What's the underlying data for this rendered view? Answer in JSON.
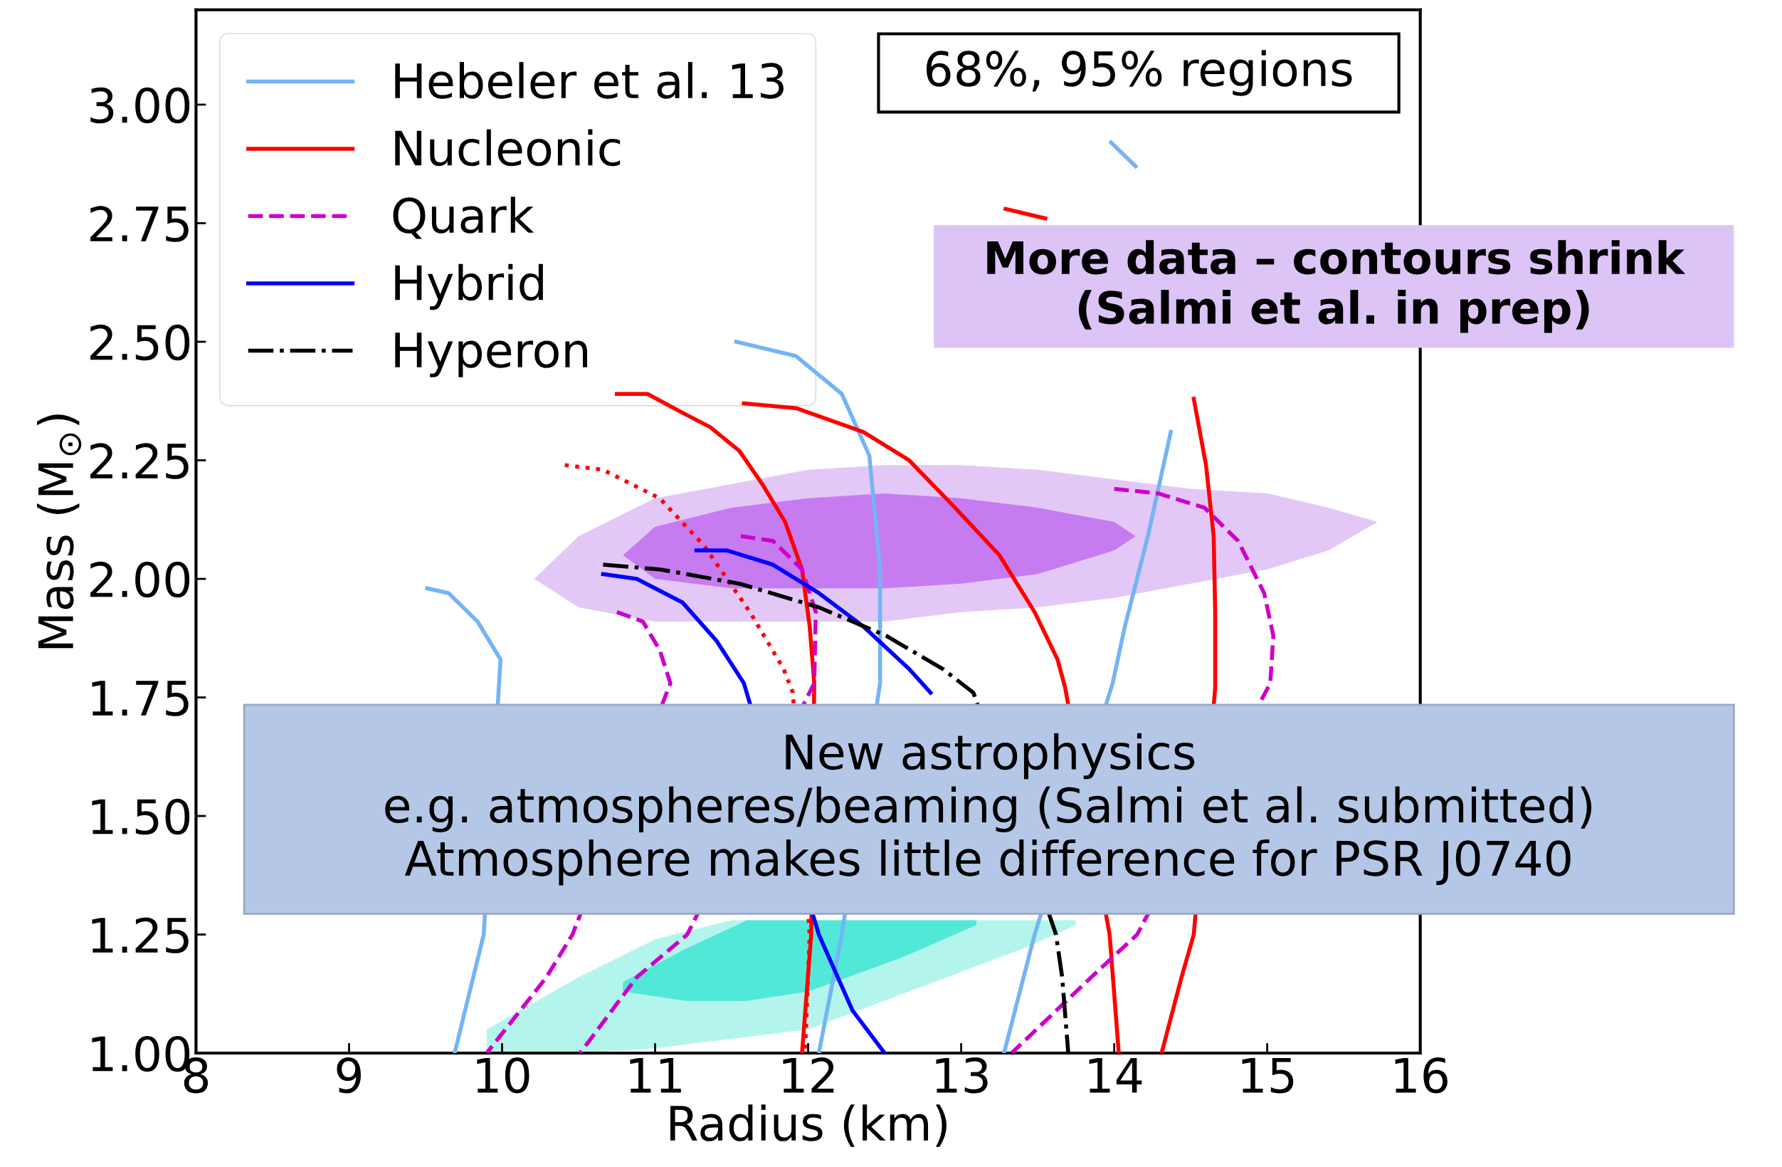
{
  "chart_data": {
    "type": "line",
    "xlabel": "Radius (km)",
    "ylabel": "Mass (M$_{⊙}$)",
    "xlim": [
      8,
      16
    ],
    "ylim": [
      1.0,
      3.2
    ],
    "xticks": [
      8,
      9,
      10,
      11,
      12,
      13,
      14,
      15,
      16
    ],
    "yticks": [
      {
        "value": 1.0,
        "label": "1.00"
      },
      {
        "value": 1.25,
        "label": "1.25"
      },
      {
        "value": 1.5,
        "label": "1.50"
      },
      {
        "value": 1.75,
        "label": "1.75"
      },
      {
        "value": 2.0,
        "label": "2.00"
      },
      {
        "value": 2.25,
        "label": "2.25"
      },
      {
        "value": 2.5,
        "label": "2.50"
      },
      {
        "value": 2.75,
        "label": "2.75"
      },
      {
        "value": 3.0,
        "label": "3.00"
      }
    ],
    "grid": false,
    "legend": "top left",
    "series": [
      {
        "type": "area",
        "color": "#e3c8f7",
        "x": [
          10.21,
          10.5,
          11,
          11.5,
          12,
          12.5,
          13,
          13.5,
          14,
          14.5,
          15,
          15.4,
          15.72
        ],
        "values": [
          null,
          null,
          null,
          null,
          null,
          null,
          null,
          null,
          null,
          null,
          null,
          null,
          null
        ],
        "lower": [
          2.0,
          1.94,
          1.91,
          1.91,
          1.91,
          1.91,
          1.93,
          1.94,
          1.96,
          1.99,
          2.02,
          2.06,
          2.12
        ],
        "upper": [
          2.0,
          2.09,
          2.17,
          2.2,
          2.23,
          2.24,
          2.24,
          2.23,
          2.21,
          2.19,
          2.18,
          2.15,
          2.12
        ]
      },
      {
        "type": "area",
        "color": "#c77bf0",
        "x": [
          10.79,
          11,
          11.5,
          12,
          12.5,
          13,
          13.5,
          14,
          14.14
        ],
        "values": [
          null,
          null,
          null,
          null,
          null,
          null,
          null,
          null,
          null
        ],
        "lower": [
          2.05,
          2.0,
          1.98,
          1.98,
          1.98,
          1.99,
          2.01,
          2.06,
          2.09
        ],
        "upper": [
          2.05,
          2.11,
          2.15,
          2.17,
          2.18,
          2.17,
          2.15,
          2.12,
          2.09
        ]
      },
      {
        "type": "area",
        "color": "#b3f5ec",
        "x": [
          9.9,
          10.5,
          11,
          11.5,
          12,
          12.66,
          13.4,
          13.75
        ],
        "values": [
          null,
          null,
          null,
          null,
          null,
          null,
          null,
          null
        ],
        "lower": [
          1.0,
          1.0,
          1.01,
          1.03,
          1.05,
          1.13,
          1.22,
          1.27
        ],
        "upper": [
          1.05,
          1.16,
          1.24,
          1.28,
          1.28,
          1.28,
          1.28,
          1.28
        ]
      },
      {
        "type": "area",
        "color": "#52e8d8",
        "x": [
          10.79,
          11.2,
          11.6,
          12,
          12.6,
          13.1
        ],
        "values": [
          null,
          null,
          null,
          null,
          null,
          null
        ],
        "lower": [
          1.13,
          1.11,
          1.11,
          1.13,
          1.2,
          1.27
        ],
        "upper": [
          1.15,
          1.22,
          1.28,
          1.28,
          1.28,
          1.28
        ]
      },
      {
        "name": "Hebeler et al. 13",
        "color": "#74b4f5",
        "line_style": "solid",
        "x": [
          9.51,
          9.65,
          9.84,
          9.99,
          9.88,
          9.69
        ],
        "values": [
          1.98,
          1.97,
          1.91,
          1.83,
          1.25,
          1.0
        ]
      },
      {
        "color": "#74b4f5",
        "line_style": "solid",
        "x": [
          11.53,
          11.92,
          12.22,
          12.4,
          12.47,
          12.47,
          12.22,
          12.07
        ],
        "values": [
          2.5,
          2.47,
          2.39,
          2.26,
          2.02,
          1.78,
          1.25,
          1.0
        ]
      },
      {
        "color": "#74b4f5",
        "line_style": "solid",
        "x": [
          13.98,
          14.14,
          null,
          null,
          14.37,
          14.22,
          14.07,
          13.99,
          13.48,
          13.28
        ],
        "values": [
          2.92,
          2.87,
          null,
          null,
          2.31,
          2.09,
          1.9,
          1.78,
          1.25,
          1.0
        ]
      },
      {
        "name": "Nucleonic",
        "color": "#ff0000",
        "line_style": "solid",
        "x": [
          10.75,
          10.95,
          11.18,
          11.36,
          11.55,
          11.7,
          11.85,
          11.96,
          12.01,
          12.04,
          12.02,
          11.96
        ],
        "values": [
          2.39,
          2.39,
          2.35,
          2.32,
          2.27,
          2.2,
          2.12,
          2.02,
          1.9,
          1.78,
          1.25,
          1.0
        ]
      },
      {
        "color": "#ff0000",
        "line_style": "solid",
        "x": [
          11.58,
          11.92,
          12.36,
          12.66,
          12.96,
          13.25,
          13.48,
          13.63,
          13.68,
          13.97,
          14.03
        ],
        "values": [
          2.37,
          2.36,
          2.31,
          2.25,
          2.15,
          2.05,
          1.93,
          1.83,
          1.77,
          1.25,
          1.0
        ]
      },
      {
        "color": "#ff0000",
        "line_style": "solid",
        "x": [
          13.29,
          13.55,
          null,
          null,
          null,
          14.52,
          14.6,
          14.65,
          14.66,
          14.66,
          14.52,
          14.44,
          14.31
        ],
        "values": [
          2.78,
          2.76,
          null,
          null,
          null,
          2.38,
          2.24,
          2.09,
          1.93,
          1.77,
          1.25,
          1.16,
          1.0
        ]
      },
      {
        "color": "#ff0000",
        "line_style": "dotted",
        "x": [
          10.41,
          10.66,
          11.03,
          11.32,
          11.62,
          11.84,
          11.9,
          12.01,
          11.98
        ],
        "values": [
          2.24,
          2.23,
          2.17,
          2.07,
          1.93,
          1.81,
          1.76,
          1.25,
          1.0
        ]
      },
      {
        "name": "Quark",
        "color": "#cc00cc",
        "line_style": "dashed",
        "x": [
          10.75,
          10.92,
          11.03,
          11.1,
          10.46,
          10.29,
          9.9
        ],
        "values": [
          1.93,
          1.91,
          1.85,
          1.78,
          1.25,
          1.16,
          1.0
        ]
      },
      {
        "color": "#cc00cc",
        "line_style": "dashed",
        "x": [
          11.56,
          11.77,
          11.96,
          12.05,
          12.04,
          11.21,
          10.88,
          10.51
        ],
        "values": [
          2.09,
          2.08,
          2.02,
          1.93,
          1.78,
          1.25,
          1.16,
          1.0
        ]
      },
      {
        "color": "#cc00cc",
        "line_style": "dashed",
        "x": [
          14.0,
          14.29,
          14.59,
          14.81,
          14.98,
          15.04,
          15.02,
          14.15,
          13.85,
          13.33
        ],
        "values": [
          2.19,
          2.18,
          2.15,
          2.08,
          1.97,
          1.88,
          1.78,
          1.25,
          1.16,
          1.0
        ]
      },
      {
        "name": "Hybrid",
        "color": "#0000ff",
        "line_style": "solid",
        "x": [
          10.66,
          10.88,
          11.18,
          11.4,
          11.58,
          12.07,
          12.29,
          12.5
        ],
        "values": [
          2.01,
          2.0,
          1.95,
          1.87,
          1.78,
          1.25,
          1.09,
          1.0
        ]
      },
      {
        "color": "#0000ff",
        "line_style": "solid",
        "x": [
          11.27,
          11.47,
          11.77,
          12.07,
          12.36,
          12.66,
          12.8
        ],
        "values": [
          2.06,
          2.06,
          2.03,
          1.97,
          1.9,
          1.81,
          1.76
        ]
      },
      {
        "name": "Hyperon",
        "color": "#000000",
        "line_style": "dashdot",
        "x": [
          10.66,
          11.03,
          11.55,
          12.07,
          12.51,
          12.88,
          13.08,
          13.62,
          13.66,
          13.7
        ],
        "values": [
          2.03,
          2.02,
          1.99,
          1.94,
          1.88,
          1.81,
          1.76,
          1.25,
          1.16,
          1.0
        ]
      }
    ],
    "annotations": [
      "68%, 95% regions",
      "More data – contours shrink\n(Salmi et al. in prep)",
      "New astrophysics\ne.g. atmospheres/beaming (Salmi et al. submitted)\nAtmosphere makes little difference for PSR J0740"
    ]
  }
}
